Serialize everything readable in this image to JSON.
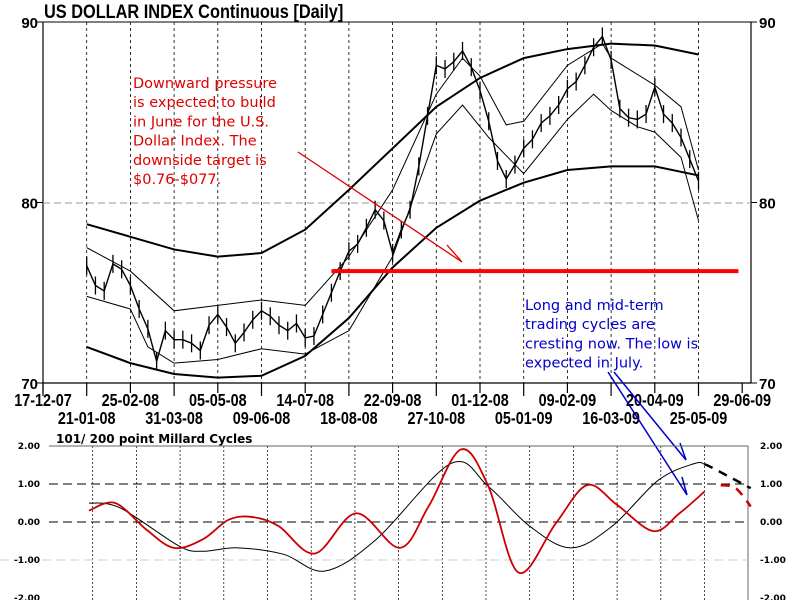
{
  "title": "US DOLLAR INDEX Continuous  [Daily]",
  "colors": {
    "price": "#000000",
    "bands": "#000000",
    "target_line": "#ff0000",
    "note_red": "#e00000",
    "note_blue": "#0000cc",
    "cycle_long": "#000000",
    "cycle_short": "#cc0000"
  },
  "annotations": {
    "red_note": [
      "Downward pressure",
      "is expected to build",
      "in June for the U.S.",
      "Dollar Index.  The",
      "downside target is",
      "$0.76-$077."
    ],
    "blue_note": [
      "Long and mid-term",
      "trading cycles are",
      "cresting now.  The low is",
      "expected in July."
    ]
  },
  "chart_data": [
    {
      "type": "line",
      "title": "US DOLLAR INDEX Continuous  [Daily]",
      "ylim": [
        70,
        90
      ],
      "y_ticks": [
        "70",
        "80",
        "90"
      ],
      "y_gridline": 80,
      "x_ticks": [
        "17-12-07",
        "21-01-08",
        "25-02-08",
        "31-03-08",
        "05-05-08",
        "09-06-08",
        "14-07-08",
        "18-08-08",
        "22-09-08",
        "27-10-08",
        "01-12-08",
        "05-01-09",
        "09-02-09",
        "16-03-09",
        "20-04-09",
        "25-05-09",
        "29-06-09"
      ],
      "price": {
        "dates": [
          "2008-01-21",
          "2008-01-28",
          "2008-02-04",
          "2008-02-11",
          "2008-02-18",
          "2008-02-25",
          "2008-03-03",
          "2008-03-10",
          "2008-03-17",
          "2008-03-24",
          "2008-03-31",
          "2008-04-07",
          "2008-04-14",
          "2008-04-21",
          "2008-04-28",
          "2008-05-05",
          "2008-05-12",
          "2008-05-19",
          "2008-05-26",
          "2008-06-02",
          "2008-06-09",
          "2008-06-16",
          "2008-06-23",
          "2008-06-30",
          "2008-07-07",
          "2008-07-14",
          "2008-07-21",
          "2008-07-28",
          "2008-08-04",
          "2008-08-11",
          "2008-08-18",
          "2008-08-25",
          "2008-09-01",
          "2008-09-08",
          "2008-09-15",
          "2008-09-22",
          "2008-09-29",
          "2008-10-06",
          "2008-10-13",
          "2008-10-20",
          "2008-10-27",
          "2008-11-03",
          "2008-11-10",
          "2008-11-17",
          "2008-11-24",
          "2008-12-01",
          "2008-12-08",
          "2008-12-15",
          "2008-12-22",
          "2008-12-29",
          "2009-01-05",
          "2009-01-12",
          "2009-01-19",
          "2009-01-26",
          "2009-02-02",
          "2009-02-09",
          "2009-02-16",
          "2009-02-23",
          "2009-03-02",
          "2009-03-09",
          "2009-03-16",
          "2009-03-23",
          "2009-03-30",
          "2009-04-06",
          "2009-04-13",
          "2009-04-20",
          "2009-04-27",
          "2009-05-04",
          "2009-05-11",
          "2009-05-18",
          "2009-05-25"
        ],
        "values": [
          76.5,
          75.4,
          75.1,
          76.6,
          76.3,
          75.4,
          74.1,
          73.0,
          71.2,
          72.9,
          72.4,
          72.4,
          72.2,
          71.8,
          73.2,
          73.8,
          73.1,
          72.2,
          72.8,
          73.5,
          74.0,
          73.7,
          73.2,
          72.9,
          73.3,
          72.5,
          72.6,
          73.8,
          75.0,
          76.2,
          77.3,
          77.7,
          78.6,
          79.6,
          79.0,
          77.2,
          78.5,
          79.6,
          82.0,
          84.8,
          87.6,
          87.4,
          87.8,
          88.4,
          87.5,
          86.2,
          84.5,
          82.3,
          81.3,
          82.1,
          83.0,
          83.5,
          84.4,
          84.8,
          85.4,
          86.3,
          86.7,
          87.6,
          88.6,
          89.2,
          87.9,
          85.2,
          84.7,
          84.6,
          84.9,
          86.4,
          84.9,
          84.4,
          83.6,
          82.4,
          81.2
        ]
      },
      "bands": [
        {
          "dates": [
            "2008-01-21",
            "2008-02-25",
            "2008-03-31",
            "2008-05-05",
            "2008-06-09",
            "2008-07-14",
            "2008-08-18",
            "2008-09-22",
            "2008-10-27",
            "2008-12-01",
            "2009-01-05",
            "2009-02-09",
            "2009-03-16",
            "2009-04-20",
            "2009-05-25"
          ],
          "values": [
            78.8,
            78.1,
            77.4,
            77.0,
            77.2,
            78.5,
            80.7,
            83.0,
            85.3,
            86.9,
            88.0,
            88.5,
            88.8,
            88.7,
            88.2
          ],
          "style": "thick"
        },
        {
          "dates": [
            "2008-01-21",
            "2008-02-25",
            "2008-03-31",
            "2008-05-05",
            "2008-06-09",
            "2008-07-14",
            "2008-08-18",
            "2008-09-22",
            "2008-10-27",
            "2008-12-01",
            "2009-01-05",
            "2009-02-09",
            "2009-03-16",
            "2009-04-20",
            "2009-05-25"
          ],
          "values": [
            72.0,
            71.1,
            70.5,
            70.3,
            70.4,
            71.5,
            73.6,
            76.4,
            78.6,
            80.1,
            81.1,
            81.8,
            82.0,
            82.0,
            81.5
          ],
          "style": "thick"
        },
        {
          "dates": [
            "2008-01-21",
            "2008-02-25",
            "2008-03-31",
            "2008-05-05",
            "2008-06-09",
            "2008-07-14",
            "2008-08-18",
            "2008-09-22",
            "2008-10-27",
            "2008-11-17",
            "2008-12-01",
            "2008-12-22",
            "2009-01-05",
            "2009-02-09",
            "2009-03-09",
            "2009-03-16",
            "2009-04-20",
            "2009-05-11",
            "2009-05-25"
          ],
          "values": [
            77.5,
            76.2,
            74.0,
            74.3,
            74.6,
            74.3,
            77.0,
            80.7,
            86.0,
            88.0,
            87.0,
            84.3,
            84.5,
            87.6,
            88.8,
            88.0,
            86.5,
            85.3,
            81.8
          ],
          "style": "thin"
        },
        {
          "dates": [
            "2008-01-21",
            "2008-02-25",
            "2008-03-10",
            "2008-03-31",
            "2008-05-05",
            "2008-06-09",
            "2008-07-14",
            "2008-08-18",
            "2008-09-22",
            "2008-10-27",
            "2008-11-17",
            "2008-12-08",
            "2009-01-05",
            "2009-02-09",
            "2009-03-02",
            "2009-03-16",
            "2009-04-06",
            "2009-04-20",
            "2009-05-11",
            "2009-05-25"
          ],
          "values": [
            74.8,
            74.1,
            72.0,
            71.1,
            71.3,
            71.9,
            71.6,
            72.9,
            77.0,
            83.8,
            85.4,
            83.6,
            81.6,
            84.6,
            86.0,
            85.1,
            84.2,
            83.9,
            82.5,
            79.0
          ],
          "style": "thin"
        }
      ],
      "target_line": {
        "value": 76.2,
        "from": "2008-08-04",
        "to": "2009-06-26"
      }
    },
    {
      "type": "line",
      "title": "101/ 200 point Millard Cycles",
      "ylim": [
        -2,
        2
      ],
      "y_ticks": [
        "-2.00",
        "-1.00",
        "0.00",
        "1.00",
        "2.00"
      ],
      "series": [
        {
          "dates": [
            "2008-01-18",
            "2008-02-12",
            "2008-03-30",
            "2008-04-18",
            "2008-05-16",
            "2008-06-22",
            "2008-07-25",
            "2008-09-04",
            "2008-11-03",
            "2008-12-03",
            "2009-01-05",
            "2009-02-07",
            "2009-03-12",
            "2009-04-18",
            "2009-05-17",
            "2009-05-25"
          ],
          "values": [
            0.5,
            0.37,
            -0.63,
            -0.77,
            -0.68,
            -0.85,
            -1.29,
            -0.46,
            1.54,
            0.93,
            -0.11,
            -0.68,
            -0.11,
            1.1,
            1.54,
            1.52
          ],
          "projection": {
            "dates": [
              "2009-05-25",
              "2009-05-31",
              "2009-07-01"
            ],
            "values": [
              1.52,
              1.43,
              0.89
            ]
          },
          "color": "#000000"
        },
        {
          "dates": [
            "2008-01-18",
            "2008-02-08",
            "2008-03-04",
            "2008-03-26",
            "2008-04-18",
            "2008-05-09",
            "2008-05-28",
            "2008-06-18",
            "2008-07-17",
            "2008-08-19",
            "2008-09-23",
            "2008-10-16",
            "2008-11-11",
            "2008-12-03",
            "2008-12-27",
            "2009-01-26",
            "2009-02-20",
            "2009-03-16",
            "2009-04-14",
            "2009-05-05",
            "2009-05-25"
          ],
          "values": [
            0.3,
            0.5,
            -0.2,
            -0.68,
            -0.46,
            0.06,
            0.13,
            -0.11,
            -0.83,
            0.23,
            -0.68,
            0.41,
            1.91,
            0.93,
            -1.33,
            -0.03,
            0.97,
            0.45,
            -0.24,
            0.23,
            0.8
          ],
          "projection": {
            "dates": [
              "2009-06-07",
              "2009-06-19",
              "2009-07-01"
            ],
            "values": [
              0.97,
              0.89,
              0.41
            ]
          },
          "color": "#cc0000"
        }
      ]
    }
  ]
}
